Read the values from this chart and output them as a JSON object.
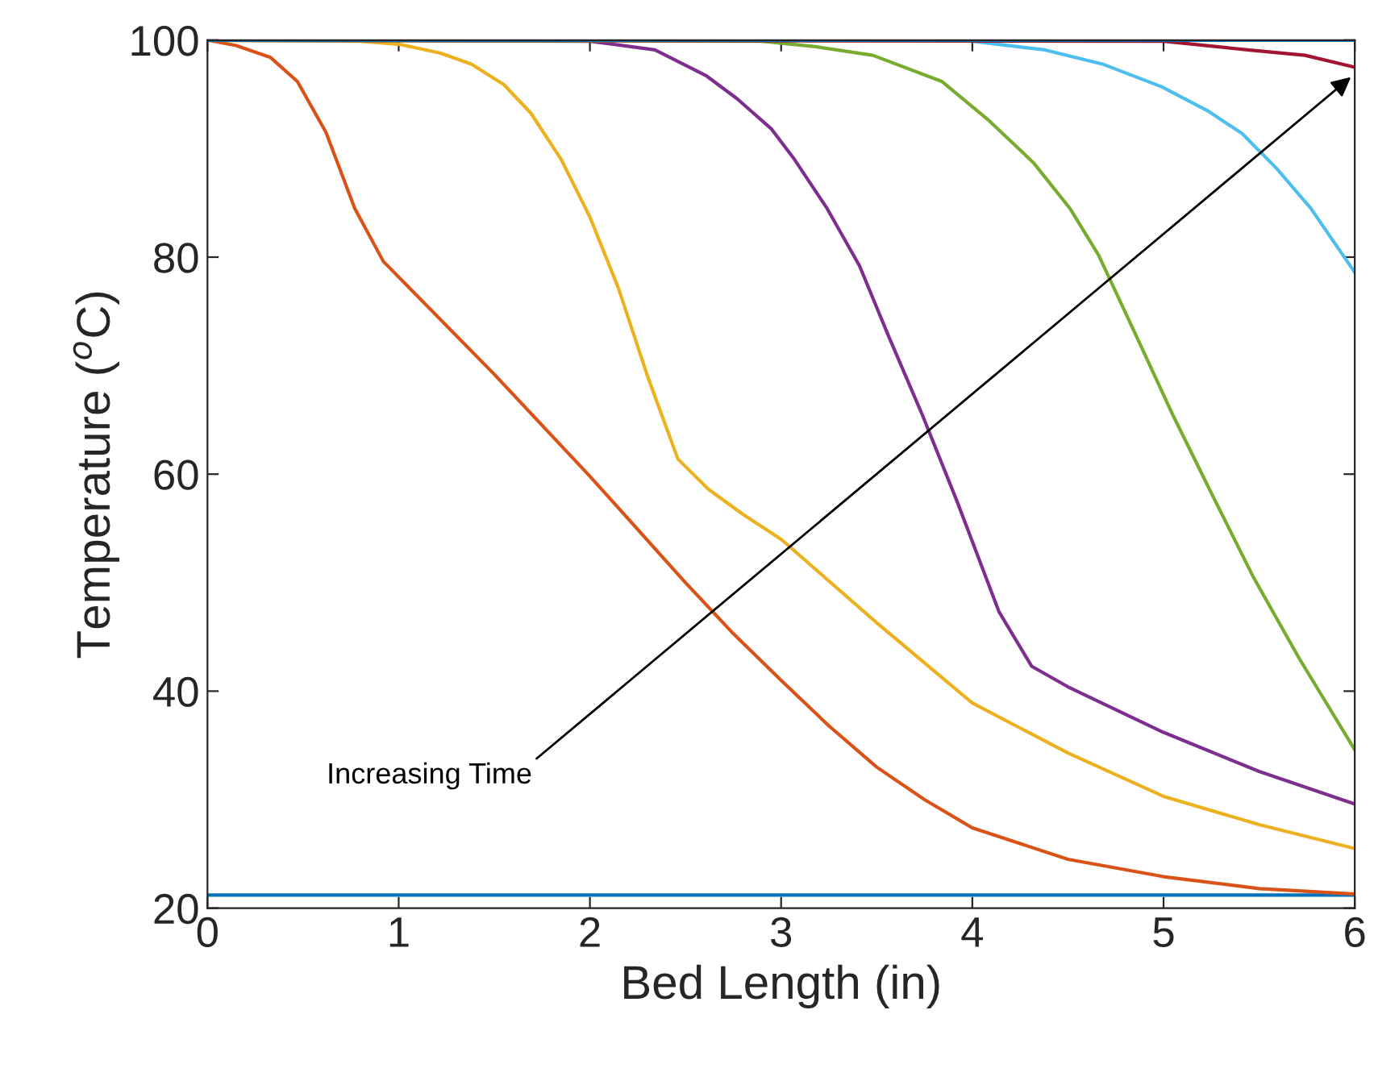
{
  "chart_data": {
    "type": "line",
    "xlabel": "Bed Length (in)",
    "ylabel": "Temperature ($^{o}$C)",
    "xlim": [
      0,
      6
    ],
    "ylim": [
      20,
      100
    ],
    "xticks": [
      0,
      1,
      2,
      3,
      4,
      5,
      6
    ],
    "yticks": [
      20,
      40,
      60,
      80,
      100
    ],
    "grid": false,
    "legend": false,
    "marker": "none",
    "line_style": "solid",
    "annotations": [
      "Increasing Time"
    ],
    "series": [
      {
        "color": "#0072bd",
        "x": [
          0,
          6
        ],
        "values": [
          21.2,
          21.2
        ]
      },
      {
        "color": "#d95319",
        "x": [
          0,
          0.15,
          0.33,
          0.47,
          0.62,
          0.77,
          0.92,
          1.5,
          2,
          2.5,
          2.75,
          3,
          3.25,
          3.5,
          3.75,
          4,
          4.5,
          5,
          5.5,
          6
        ],
        "values": [
          100,
          99.5,
          98.4,
          96.2,
          91.5,
          84.5,
          79.6,
          69.2,
          59.8,
          50,
          45.3,
          41,
          36.8,
          33,
          30,
          27.4,
          24.5,
          22.9,
          21.8,
          21.3
        ]
      },
      {
        "color": "#edb120",
        "x": [
          0,
          0.8,
          1.01,
          1.22,
          1.38,
          1.55,
          1.69,
          1.85,
          2.0,
          2.15,
          2.3,
          2.46,
          2.62,
          2.8,
          3,
          3.5,
          4,
          4.5,
          5,
          5.5,
          6
        ],
        "values": [
          100,
          99.9,
          99.6,
          98.8,
          97.8,
          95.9,
          93.3,
          89,
          83.7,
          77.1,
          69.1,
          61.4,
          58.6,
          56.3,
          54,
          46.3,
          38.9,
          34.3,
          30.3,
          27.7,
          25.5
        ]
      },
      {
        "color": "#7e2f8e",
        "x": [
          0,
          2.0,
          2.34,
          2.61,
          2.77,
          2.95,
          3.07,
          3.24,
          3.41,
          3.56,
          3.74,
          3.92,
          4.14,
          4.31,
          4.5,
          5,
          5.5,
          6
        ],
        "values": [
          100,
          99.9,
          99.1,
          96.7,
          94.6,
          91.8,
          89,
          84.5,
          79.2,
          72.8,
          65.4,
          57.5,
          47.3,
          42.3,
          40.4,
          36.2,
          32.6,
          29.6
        ]
      },
      {
        "color": "#77ac30",
        "x": [
          0,
          2.9,
          3.18,
          3.48,
          3.84,
          4.08,
          4.32,
          4.51,
          4.66,
          4.84,
          5.05,
          5.26,
          5.47,
          5.71,
          6
        ],
        "values": [
          100,
          99.9,
          99.4,
          98.6,
          96.2,
          92.7,
          88.7,
          84.5,
          80.2,
          73.4,
          65.4,
          57.9,
          50.5,
          43,
          34.6
        ]
      },
      {
        "color": "#4dbeee",
        "x": [
          4.0,
          4.38,
          4.68,
          4.99,
          5.23,
          5.41,
          5.59,
          5.77,
          6
        ],
        "values": [
          99.9,
          99.1,
          97.8,
          95.7,
          93.5,
          91.4,
          88.2,
          84.5,
          78.6
        ]
      },
      {
        "color": "#a2142f",
        "x": [
          0,
          5.0,
          5.44,
          5.74,
          6
        ],
        "values": [
          100,
          99.9,
          99.1,
          98.6,
          97.5
        ]
      },
      {
        "color": "#0072bd",
        "x": [
          0,
          6
        ],
        "values": [
          100,
          100
        ]
      }
    ]
  }
}
